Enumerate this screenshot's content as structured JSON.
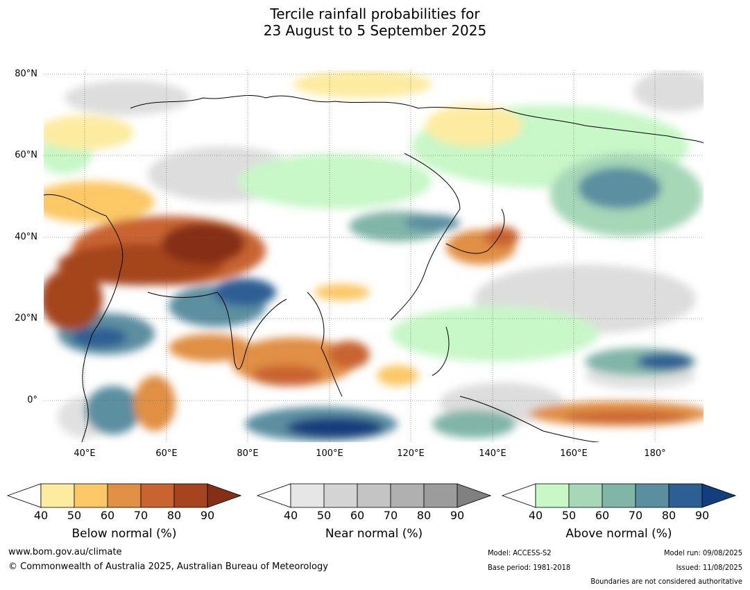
{
  "title": {
    "line1": "Tercile rainfall probabilities for",
    "line2": "23 August to 5 September 2025"
  },
  "map": {
    "lat_labels": [
      "80°N",
      "60°N",
      "40°N",
      "20°N",
      "0°"
    ],
    "lon_labels": [
      "40°E",
      "60°E",
      "80°E",
      "100°E",
      "120°E",
      "140°E",
      "160°E",
      "180°"
    ]
  },
  "legends": [
    {
      "id": "below",
      "title": "Below normal (%)",
      "ticks": [
        "40",
        "50",
        "60",
        "70",
        "80",
        "90"
      ],
      "colors": [
        "#ffffff",
        "#fdeba0",
        "#fcc866",
        "#e08f45",
        "#c96330",
        "#a5441f",
        "#862f17"
      ]
    },
    {
      "id": "near",
      "title": "Near normal (%)",
      "ticks": [
        "40",
        "50",
        "60",
        "70",
        "80",
        "90"
      ],
      "colors": [
        "#ffffff",
        "#e6e6e6",
        "#d4d4d4",
        "#c4c4c4",
        "#b0b0b0",
        "#9c9c9c",
        "#808080"
      ]
    },
    {
      "id": "above",
      "title": "Above normal (%)",
      "ticks": [
        "40",
        "50",
        "60",
        "70",
        "80",
        "90"
      ],
      "colors": [
        "#ffffff",
        "#c8f7c8",
        "#a6d7b7",
        "#80b5a8",
        "#5b8fa0",
        "#2e5f94",
        "#133e7d"
      ]
    }
  ],
  "footer": {
    "website": "www.bom.gov.au/climate",
    "copyright": "© Commonwealth of Australia 2025, Australian Bureau of Meteorology",
    "model": "Model: ACCESS-S2",
    "base_period": "Base period: 1981-2018",
    "model_run": "Model run: 09/08/2025",
    "issued": "Issued: 11/08/2025",
    "disclaimer": "Boundaries are not considered authoritative"
  }
}
